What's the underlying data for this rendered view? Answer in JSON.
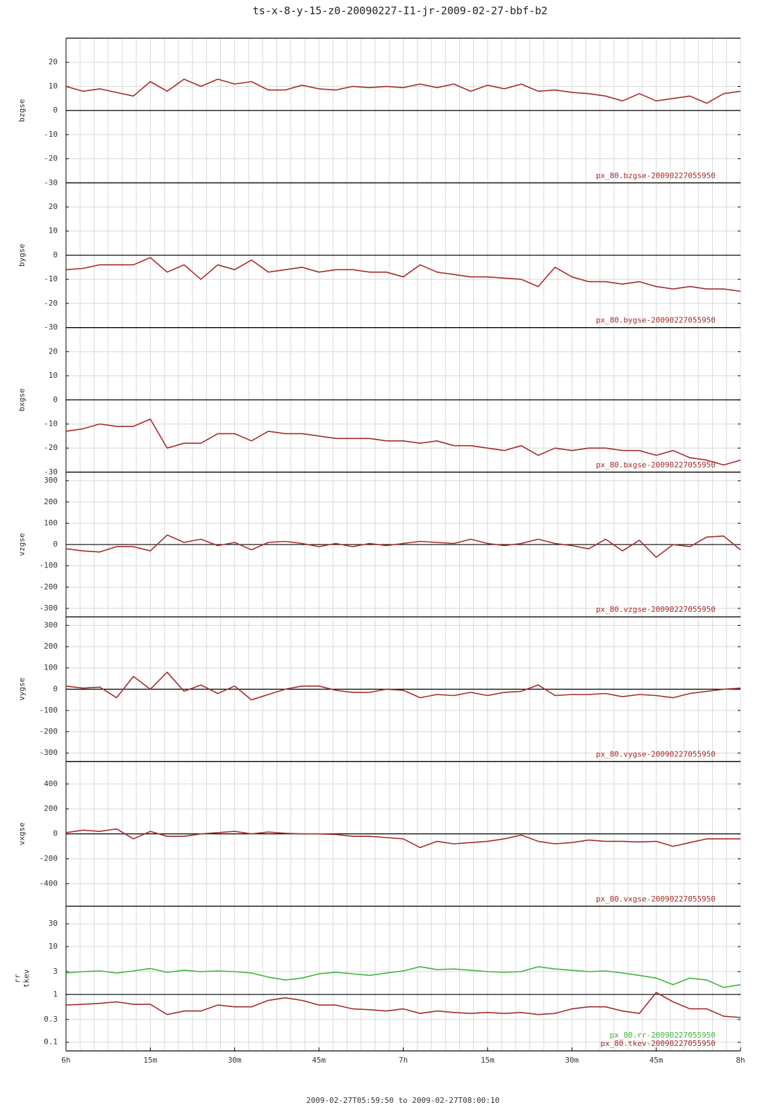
{
  "header": {
    "title": "ts-x-8-y-15-z0-20090227-I1-jr-2009-02-27-bbf-b2",
    "xlabel": "2009-02-27T05:59:50 to 2009-02-27T08:00:10"
  },
  "chart_data": [
    {
      "type": "line",
      "ylabel": "bzgse",
      "xlim": [
        0,
        120
      ],
      "xminor_step": 2.5,
      "ylim": [
        -30,
        30
      ],
      "yticks": [
        -30,
        -20,
        -10,
        0,
        10,
        20
      ],
      "hline": 0,
      "grid": true,
      "x": [
        0,
        3,
        6,
        9,
        12,
        15,
        18,
        21,
        24,
        27,
        30,
        33,
        36,
        39,
        42,
        45,
        48,
        51,
        54,
        57,
        60,
        63,
        66,
        69,
        72,
        75,
        78,
        81,
        84,
        87,
        90,
        93,
        96,
        99,
        102,
        105,
        108,
        111,
        114,
        117,
        120
      ],
      "series": [
        {
          "name": "px_80.bzgse-20090227055950",
          "color": "#a52a2a",
          "values": [
            10,
            8,
            9,
            7.5,
            6,
            12,
            8,
            13,
            10,
            13,
            11,
            12,
            8.5,
            8.5,
            10.5,
            9,
            8.5,
            10,
            9.5,
            10,
            9.5,
            11,
            9.5,
            11,
            8,
            10.5,
            9,
            11,
            8,
            8.5,
            7.5,
            7,
            6,
            4,
            7,
            4,
            5,
            6,
            3,
            7,
            8
          ]
        }
      ]
    },
    {
      "type": "line",
      "ylabel": "bygse",
      "xlim": [
        0,
        120
      ],
      "xminor_step": 2.5,
      "ylim": [
        -30,
        30
      ],
      "yticks": [
        -30,
        -20,
        -10,
        0,
        10,
        20
      ],
      "hline": 0,
      "grid": true,
      "x": [
        0,
        3,
        6,
        9,
        12,
        15,
        18,
        21,
        24,
        27,
        30,
        33,
        36,
        39,
        42,
        45,
        48,
        51,
        54,
        57,
        60,
        63,
        66,
        69,
        72,
        75,
        78,
        81,
        84,
        87,
        90,
        93,
        96,
        99,
        102,
        105,
        108,
        111,
        114,
        117,
        120
      ],
      "series": [
        {
          "name": "px_80.bygse-20090227055950",
          "color": "#a52a2a",
          "values": [
            -6,
            -5.5,
            -4,
            -4,
            -4,
            -1,
            -7,
            -4,
            -10,
            -4,
            -6,
            -2,
            -7,
            -6,
            -5,
            -7,
            -6,
            -6,
            -7,
            -7,
            -9,
            -4,
            -7,
            -8,
            -9,
            -9,
            -9.5,
            -10,
            -13,
            -5,
            -9,
            -11,
            -11,
            -12,
            -11,
            -13,
            -14,
            -13,
            -14,
            -14,
            -15
          ]
        }
      ]
    },
    {
      "type": "line",
      "ylabel": "bxgse",
      "xlim": [
        0,
        120
      ],
      "xminor_step": 2.5,
      "ylim": [
        -30,
        30
      ],
      "yticks": [
        -30,
        -20,
        -10,
        0,
        10,
        20
      ],
      "hline": 0,
      "grid": true,
      "x": [
        0,
        3,
        6,
        9,
        12,
        15,
        18,
        21,
        24,
        27,
        30,
        33,
        36,
        39,
        42,
        45,
        48,
        51,
        54,
        57,
        60,
        63,
        66,
        69,
        72,
        75,
        78,
        81,
        84,
        87,
        90,
        93,
        96,
        99,
        102,
        105,
        108,
        111,
        114,
        117,
        120
      ],
      "series": [
        {
          "name": "px_80.bxgse-20090227055950",
          "color": "#a52a2a",
          "values": [
            -13,
            -12,
            -10,
            -11,
            -11,
            -8,
            -20,
            -18,
            -18,
            -14,
            -14,
            -17,
            -13,
            -14,
            -14,
            -15,
            -16,
            -16,
            -16,
            -17,
            -17,
            -18,
            -17,
            -19,
            -19,
            -20,
            -21,
            -19,
            -23,
            -20,
            -21,
            -20,
            -20,
            -21,
            -21,
            -23,
            -21,
            -24,
            -25,
            -27,
            -25
          ]
        }
      ]
    },
    {
      "type": "line",
      "ylabel": "vzgse",
      "xlim": [
        0,
        120
      ],
      "xminor_step": 2.5,
      "ylim": [
        -340,
        340
      ],
      "yticks": [
        -300,
        -200,
        -100,
        0,
        100,
        200,
        300
      ],
      "hline": 0,
      "grid": true,
      "x": [
        0,
        3,
        6,
        9,
        12,
        15,
        18,
        21,
        24,
        27,
        30,
        33,
        36,
        39,
        42,
        45,
        48,
        51,
        54,
        57,
        60,
        63,
        66,
        69,
        72,
        75,
        78,
        81,
        84,
        87,
        90,
        93,
        96,
        99,
        102,
        105,
        108,
        111,
        114,
        117,
        120
      ],
      "series": [
        {
          "name": "px_80.vzgse-20090227055950",
          "color": "#a52a2a",
          "values": [
            -20,
            -30,
            -35,
            -10,
            -10,
            -30,
            45,
            10,
            25,
            -5,
            10,
            -25,
            10,
            15,
            5,
            -10,
            5,
            -10,
            5,
            -5,
            5,
            15,
            10,
            5,
            25,
            5,
            -5,
            5,
            25,
            5,
            -5,
            -20,
            25,
            -30,
            20,
            -60,
            0,
            -10,
            35,
            40,
            -25
          ]
        }
      ]
    },
    {
      "type": "line",
      "ylabel": "vygse",
      "xlim": [
        0,
        120
      ],
      "xminor_step": 2.5,
      "ylim": [
        -340,
        340
      ],
      "yticks": [
        -300,
        -200,
        -100,
        0,
        100,
        200,
        300
      ],
      "hline": 0,
      "grid": true,
      "x": [
        0,
        3,
        6,
        9,
        12,
        15,
        18,
        21,
        24,
        27,
        30,
        33,
        36,
        39,
        42,
        45,
        48,
        51,
        54,
        57,
        60,
        63,
        66,
        69,
        72,
        75,
        78,
        81,
        84,
        87,
        90,
        93,
        96,
        99,
        102,
        105,
        108,
        111,
        114,
        117,
        120
      ],
      "series": [
        {
          "name": "px_80.vygse-20090227055950",
          "color": "#a52a2a",
          "values": [
            15,
            5,
            10,
            -40,
            60,
            0,
            80,
            -10,
            20,
            -20,
            15,
            -50,
            -25,
            0,
            15,
            15,
            -5,
            -15,
            -15,
            0,
            -5,
            -40,
            -25,
            -30,
            -15,
            -30,
            -15,
            -10,
            20,
            -30,
            -25,
            -25,
            -20,
            -35,
            -25,
            -30,
            -40,
            -20,
            -10,
            0,
            5
          ]
        }
      ]
    },
    {
      "type": "line",
      "ylabel": "vxgse",
      "xlim": [
        0,
        120
      ],
      "xminor_step": 2.5,
      "ylim": [
        -580,
        580
      ],
      "yticks": [
        -400,
        -200,
        0,
        200,
        400
      ],
      "hline": 0,
      "grid": true,
      "x": [
        0,
        3,
        6,
        9,
        12,
        15,
        18,
        21,
        24,
        27,
        30,
        33,
        36,
        39,
        42,
        45,
        48,
        51,
        54,
        57,
        60,
        63,
        66,
        69,
        72,
        75,
        78,
        81,
        84,
        87,
        90,
        93,
        96,
        99,
        102,
        105,
        108,
        111,
        114,
        117,
        120
      ],
      "series": [
        {
          "name": "px_80.vxgse-20090227055950",
          "color": "#a52a2a",
          "values": [
            10,
            30,
            20,
            40,
            -40,
            20,
            -20,
            -20,
            0,
            10,
            20,
            0,
            15,
            5,
            0,
            0,
            -5,
            -20,
            -20,
            -30,
            -40,
            -110,
            -60,
            -80,
            -70,
            -60,
            -40,
            -10,
            -60,
            -80,
            -70,
            -50,
            -60,
            -60,
            -65,
            -60,
            -100,
            -70,
            -40,
            -40,
            -40
          ]
        }
      ]
    },
    {
      "type": "line",
      "ylabel": [
        "rr",
        "tkev"
      ],
      "log": true,
      "xlim": [
        0,
        120
      ],
      "xminor_step": 2.5,
      "ylim": [
        0.066,
        70
      ],
      "yticks": [
        0.1,
        0.3,
        1,
        3,
        10,
        30
      ],
      "hline": 1,
      "grid": true,
      "x": [
        0,
        3,
        6,
        9,
        12,
        15,
        18,
        21,
        24,
        27,
        30,
        33,
        36,
        39,
        42,
        45,
        48,
        51,
        54,
        57,
        60,
        63,
        66,
        69,
        72,
        75,
        78,
        81,
        84,
        87,
        90,
        93,
        96,
        99,
        102,
        105,
        108,
        111,
        114,
        117,
        120
      ],
      "xticks": [
        {
          "value": 0,
          "label": "6h"
        },
        {
          "value": 15,
          "label": "15m"
        },
        {
          "value": 30,
          "label": "30m"
        },
        {
          "value": 45,
          "label": "45m"
        },
        {
          "value": 60,
          "label": "7h"
        },
        {
          "value": 75,
          "label": "15m"
        },
        {
          "value": 90,
          "label": "30m"
        },
        {
          "value": 105,
          "label": "45m"
        },
        {
          "value": 120,
          "label": "8h"
        }
      ],
      "series": [
        {
          "name": "px_80.rr-20090227055950",
          "color": "#3cb43c",
          "values": [
            2.8,
            3,
            3.1,
            2.8,
            3.1,
            3.5,
            2.9,
            3.2,
            3,
            3.1,
            3,
            2.8,
            2.3,
            2,
            2.2,
            2.7,
            2.9,
            2.7,
            2.5,
            2.8,
            3.1,
            3.8,
            3.3,
            3.4,
            3.2,
            3,
            2.9,
            3,
            3.8,
            3.4,
            3.2,
            3,
            3.1,
            2.8,
            2.5,
            2.2,
            1.6,
            2.2,
            2,
            1.4,
            1.6
          ]
        },
        {
          "name": "px_80.tkev-20090227055950",
          "color": "#a52a2a",
          "values": [
            0.6,
            0.62,
            0.65,
            0.7,
            0.62,
            0.62,
            0.38,
            0.45,
            0.45,
            0.6,
            0.55,
            0.55,
            0.75,
            0.85,
            0.75,
            0.6,
            0.6,
            0.5,
            0.48,
            0.45,
            0.5,
            0.4,
            0.45,
            0.42,
            0.4,
            0.42,
            0.4,
            0.42,
            0.38,
            0.4,
            0.5,
            0.55,
            0.55,
            0.45,
            0.4,
            1.1,
            0.7,
            0.5,
            0.5,
            0.35,
            0.33
          ]
        }
      ]
    }
  ]
}
